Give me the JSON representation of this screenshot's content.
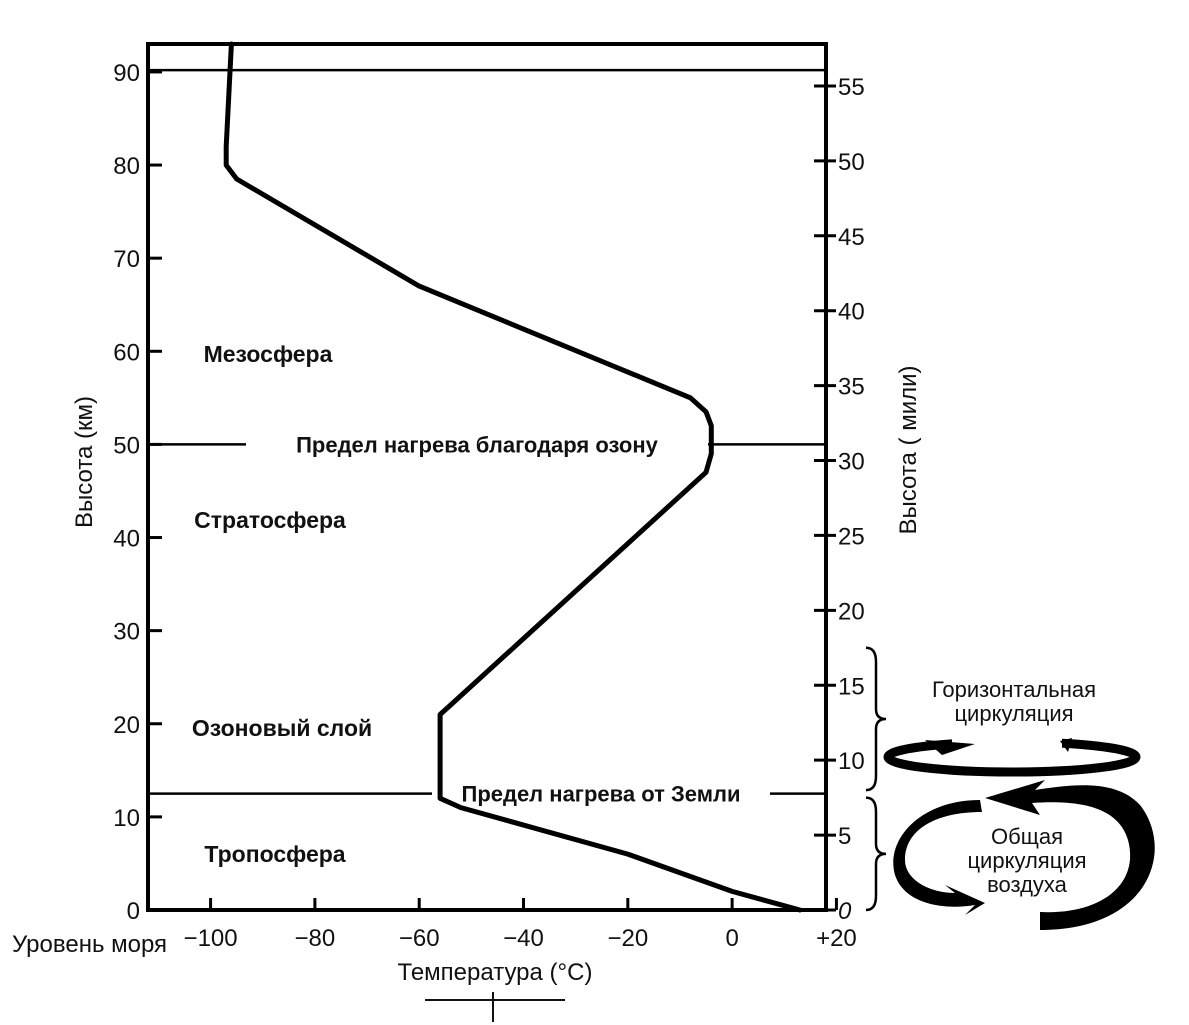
{
  "chart_data": {
    "type": "line",
    "title": "",
    "xlabel": "Температура (°C)",
    "ylabel": "Высота (км)",
    "y2label": "Высота ( мили)",
    "x_extra_label": "Уровень моря",
    "xlim": [
      -112,
      18
    ],
    "ylim": [
      0,
      93
    ],
    "y2lim": [
      0,
      57.8
    ],
    "x_ticks": [
      -100,
      -80,
      -60,
      -40,
      -20,
      0,
      20
    ],
    "x_tick_labels": [
      "−100",
      "−80",
      "−60",
      "−40",
      "−20",
      "0",
      "+20"
    ],
    "y_ticks": [
      0,
      10,
      20,
      30,
      40,
      50,
      60,
      70,
      80,
      90
    ],
    "y_tick_labels": [
      "0",
      "10",
      "20",
      "30",
      "40",
      "50",
      "60",
      "70",
      "80",
      "90"
    ],
    "y2_ticks": [
      0,
      5,
      10,
      15,
      20,
      25,
      30,
      35,
      40,
      45,
      50,
      55
    ],
    "y2_tick_labels": [
      "0",
      "5",
      "10",
      "15",
      "20",
      "25",
      "30",
      "35",
      "40",
      "45",
      "50",
      "55"
    ],
    "grid": false,
    "series": [
      {
        "x": [
          13,
          0,
          -20,
          -52,
          -56,
          -56,
          -56,
          -54,
          -5,
          -4,
          -4,
          -5,
          -8,
          -60,
          -95,
          -97,
          -97,
          -96
        ],
        "y": [
          0,
          2,
          6,
          11,
          12,
          13,
          21,
          22,
          47,
          49,
          52,
          53.5,
          55,
          67,
          78.5,
          80,
          82,
          93
        ]
      }
    ],
    "boundaries": [
      {
        "y": 12.5,
        "label": "Предел нагрева от Земли"
      },
      {
        "y": 50,
        "label": "Предел нагрева благодаря озону"
      },
      {
        "y": 90.2,
        "label": ""
      }
    ],
    "regions": [
      {
        "label": "Мезосфера",
        "y": 60
      },
      {
        "label": "Стратосфера",
        "y": 42
      },
      {
        "label": "Озоновый слой",
        "y": 20
      },
      {
        "label": "Тропосфера",
        "y": 6
      }
    ],
    "circulation": [
      {
        "lines": [
          "Горизонтальная",
          "циркуляция"
        ],
        "range_miles": [
          8,
          17.5
        ]
      },
      {
        "lines": [
          "Общая",
          "циркуляция",
          "воздуха"
        ],
        "range_miles": [
          0,
          7.5
        ]
      }
    ]
  }
}
